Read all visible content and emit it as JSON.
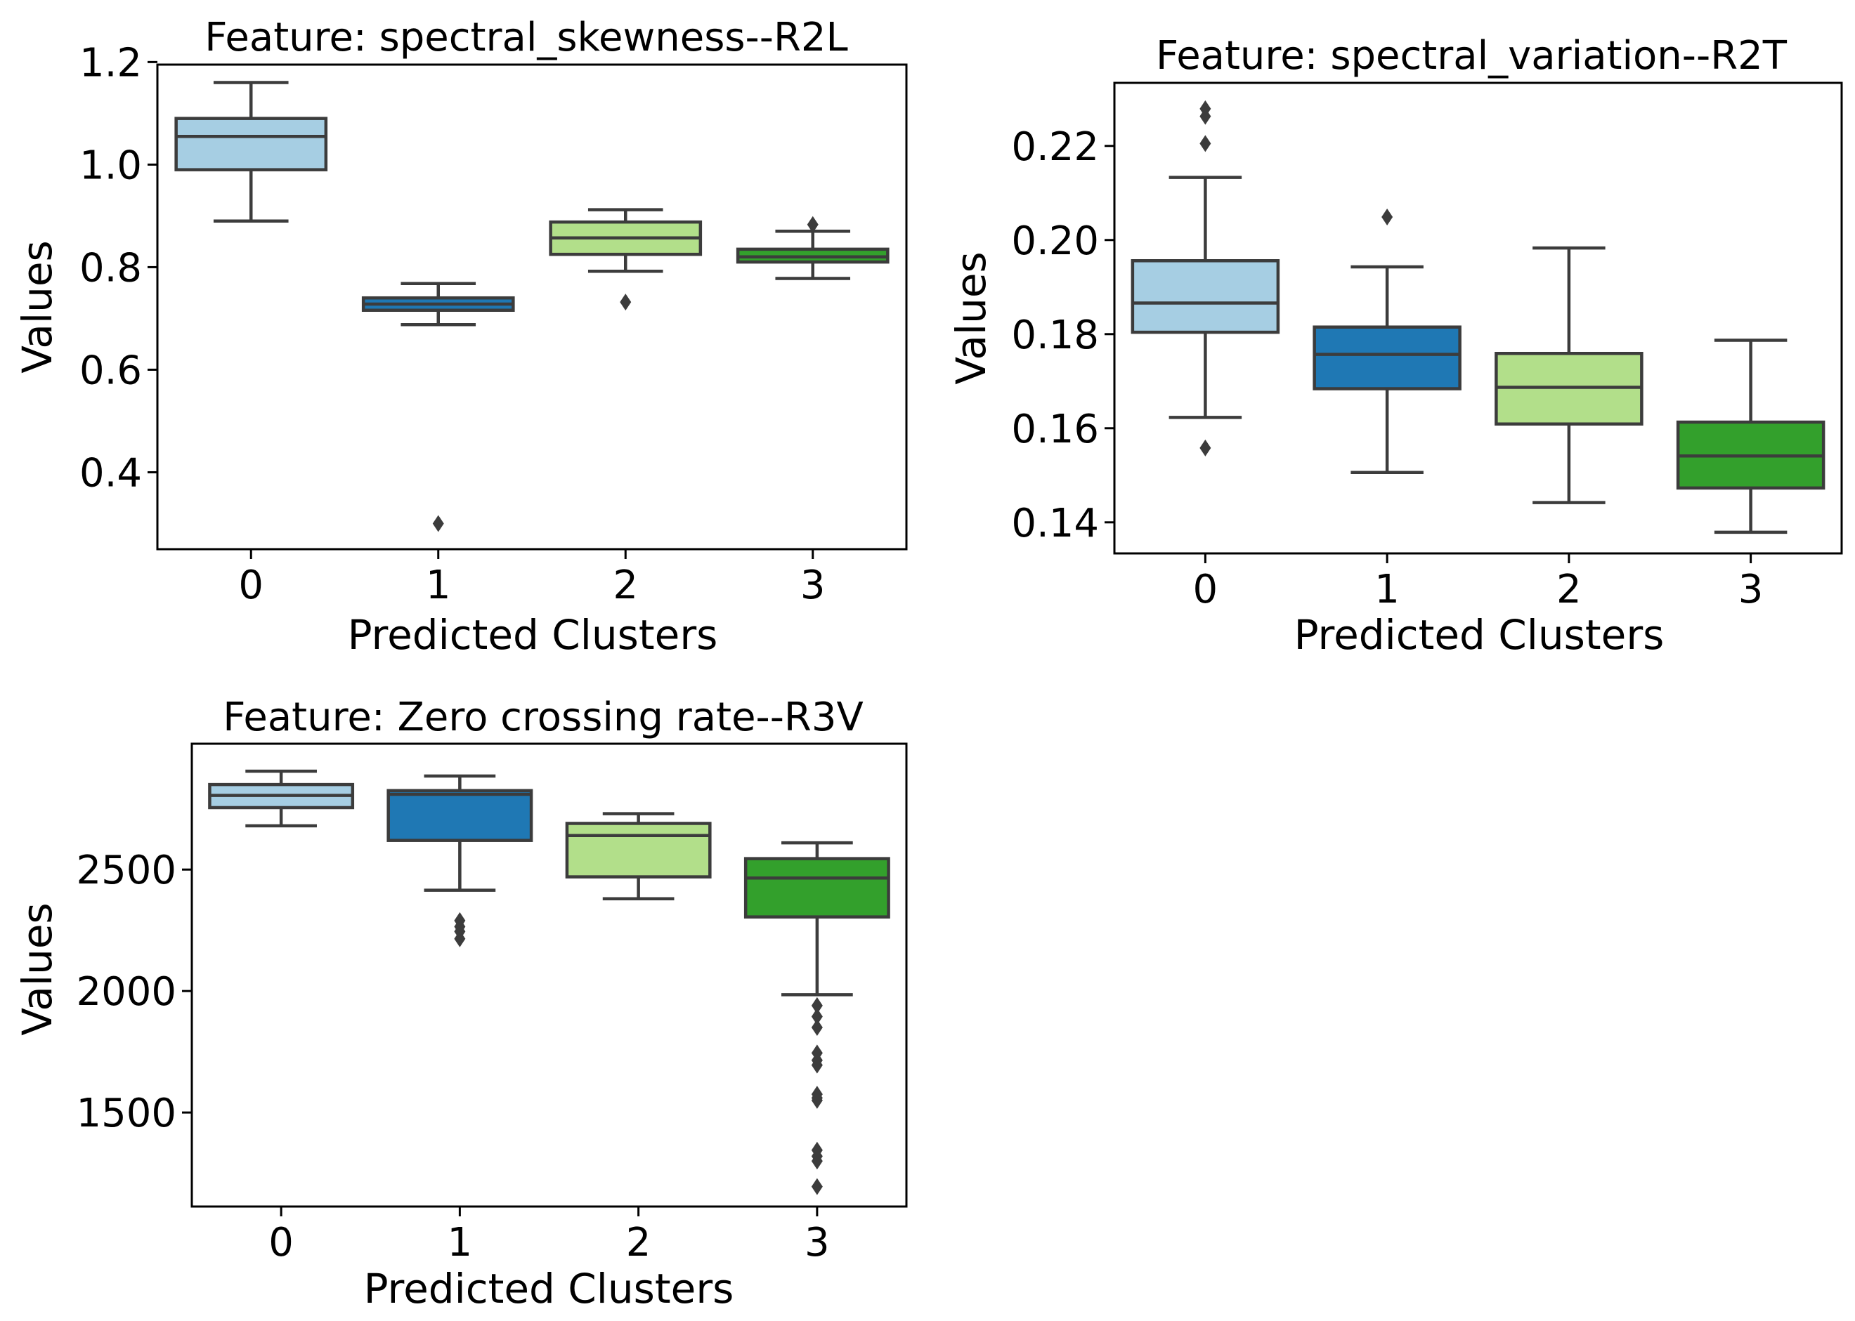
{
  "figure": {
    "palette": [
      "#a6cee3",
      "#1f78b4",
      "#b2df8a",
      "#33a02c"
    ],
    "line_color": "#3c3c3c"
  },
  "chart_data": [
    {
      "type": "box",
      "title": "Feature: spectral_skewness--R2L",
      "xlabel": "Predicted Clusters",
      "ylabel": "Values",
      "categories": [
        "0",
        "1",
        "2",
        "3"
      ],
      "ylim": [
        0.25,
        1.195
      ],
      "yticks": [
        0.4,
        0.6,
        0.8,
        1.0,
        1.2
      ],
      "ytick_labels": [
        "0.4",
        "0.6",
        "0.8",
        "1.0",
        "1.2"
      ],
      "boxes": [
        {
          "whisker_low": 0.89,
          "q1": 0.99,
          "median": 1.055,
          "q3": 1.09,
          "whisker_high": 1.16,
          "outliers": []
        },
        {
          "whisker_low": 0.688,
          "q1": 0.716,
          "median": 0.728,
          "q3": 0.74,
          "whisker_high": 0.768,
          "outliers": [
            0.3
          ]
        },
        {
          "whisker_low": 0.792,
          "q1": 0.825,
          "median": 0.857,
          "q3": 0.888,
          "whisker_high": 0.912,
          "outliers": [
            0.732
          ]
        },
        {
          "whisker_low": 0.778,
          "q1": 0.81,
          "median": 0.82,
          "q3": 0.835,
          "whisker_high": 0.87,
          "outliers": [
            0.883
          ]
        }
      ]
    },
    {
      "type": "box",
      "title": "Feature: spectral_variation--R2T",
      "xlabel": "Predicted Clusters",
      "ylabel": "Values",
      "categories": [
        "0",
        "1",
        "2",
        "3"
      ],
      "ylim": [
        0.1334,
        0.2334
      ],
      "yticks": [
        0.14,
        0.16,
        0.18,
        0.2,
        0.22
      ],
      "ytick_labels": [
        "0.14",
        "0.16",
        "0.18",
        "0.20",
        "0.22"
      ],
      "boxes": [
        {
          "whisker_low": 0.1623,
          "q1": 0.1804,
          "median": 0.1866,
          "q3": 0.1956,
          "whisker_high": 0.2133,
          "outliers": [
            0.1558,
            0.2205,
            0.2263,
            0.2279
          ]
        },
        {
          "whisker_low": 0.1506,
          "q1": 0.1684,
          "median": 0.1757,
          "q3": 0.1815,
          "whisker_high": 0.1943,
          "outliers": [
            0.2049
          ]
        },
        {
          "whisker_low": 0.1442,
          "q1": 0.1609,
          "median": 0.1687,
          "q3": 0.1759,
          "whisker_high": 0.1983,
          "outliers": []
        },
        {
          "whisker_low": 0.1379,
          "q1": 0.1473,
          "median": 0.1541,
          "q3": 0.1613,
          "whisker_high": 0.1787,
          "outliers": []
        }
      ]
    },
    {
      "type": "box",
      "title": "Feature: Zero crossing rate--R3V",
      "xlabel": "Predicted Clusters",
      "ylabel": "Values",
      "categories": [
        "0",
        "1",
        "2",
        "3"
      ],
      "ylim": [
        1113,
        3018
      ],
      "yticks": [
        1500,
        2000,
        2500
      ],
      "ytick_labels": [
        "1500",
        "2000",
        "2500"
      ],
      "boxes": [
        {
          "whisker_low": 2680,
          "q1": 2755,
          "median": 2805,
          "q3": 2850,
          "whisker_high": 2905,
          "outliers": []
        },
        {
          "whisker_low": 2415,
          "q1": 2620,
          "median": 2810,
          "q3": 2825,
          "whisker_high": 2885,
          "outliers": [
            2290,
            2265,
            2245,
            2215
          ]
        },
        {
          "whisker_low": 2380,
          "q1": 2470,
          "median": 2640,
          "q3": 2690,
          "whisker_high": 2730,
          "outliers": []
        },
        {
          "whisker_low": 1985,
          "q1": 2305,
          "median": 2465,
          "q3": 2545,
          "whisker_high": 2610,
          "outliers": [
            1940,
            1895,
            1850,
            1745,
            1715,
            1695,
            1575,
            1560,
            1550,
            1345,
            1320,
            1300,
            1195
          ]
        }
      ]
    }
  ]
}
